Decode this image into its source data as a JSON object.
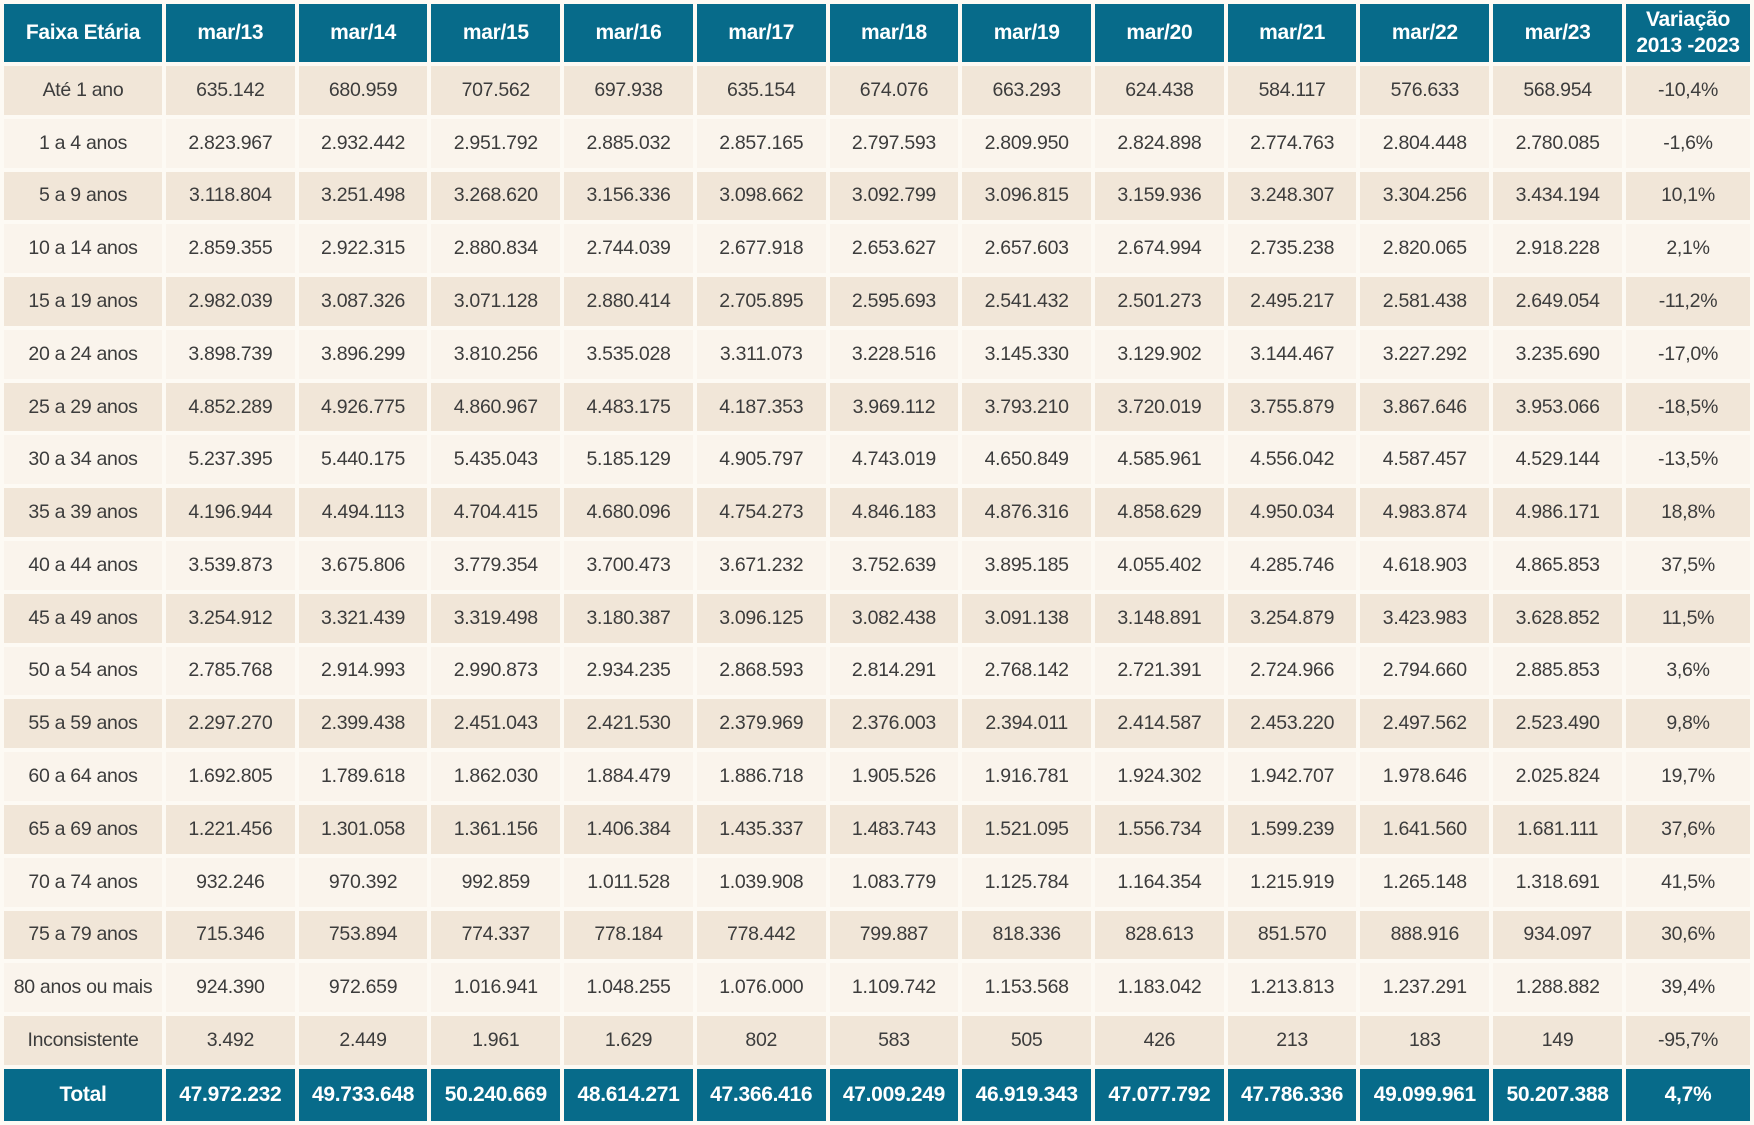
{
  "colors": {
    "header_bg": "#076b8a",
    "header_text": "#ffffff",
    "row_odd": "#f1e6d8",
    "row_even": "#faf4ec",
    "cell_text": "#3c3c3c",
    "page_bg": "#fdfaf4"
  },
  "chart_data": {
    "type": "table",
    "title": "",
    "columns": [
      "Faixa Etária",
      "mar/13",
      "mar/14",
      "mar/15",
      "mar/16",
      "mar/17",
      "mar/18",
      "mar/19",
      "mar/20",
      "mar/21",
      "mar/22",
      "mar/23"
    ],
    "variation_header": {
      "line1": "Variação",
      "line2": "2013 -2023"
    },
    "rows": [
      {
        "label": "Até 1 ano",
        "values": [
          "635.142",
          "680.959",
          "707.562",
          "697.938",
          "635.154",
          "674.076",
          "663.293",
          "624.438",
          "584.117",
          "576.633",
          "568.954"
        ],
        "variation": "-10,4%"
      },
      {
        "label": "1 a 4 anos",
        "values": [
          "2.823.967",
          "2.932.442",
          "2.951.792",
          "2.885.032",
          "2.857.165",
          "2.797.593",
          "2.809.950",
          "2.824.898",
          "2.774.763",
          "2.804.448",
          "2.780.085"
        ],
        "variation": "-1,6%"
      },
      {
        "label": "5 a 9 anos",
        "values": [
          "3.118.804",
          "3.251.498",
          "3.268.620",
          "3.156.336",
          "3.098.662",
          "3.092.799",
          "3.096.815",
          "3.159.936",
          "3.248.307",
          "3.304.256",
          "3.434.194"
        ],
        "variation": "10,1%"
      },
      {
        "label": "10 a 14 anos",
        "values": [
          "2.859.355",
          "2.922.315",
          "2.880.834",
          "2.744.039",
          "2.677.918",
          "2.653.627",
          "2.657.603",
          "2.674.994",
          "2.735.238",
          "2.820.065",
          "2.918.228"
        ],
        "variation": "2,1%"
      },
      {
        "label": "15 a 19 anos",
        "values": [
          "2.982.039",
          "3.087.326",
          "3.071.128",
          "2.880.414",
          "2.705.895",
          "2.595.693",
          "2.541.432",
          "2.501.273",
          "2.495.217",
          "2.581.438",
          "2.649.054"
        ],
        "variation": "-11,2%"
      },
      {
        "label": "20 a 24 anos",
        "values": [
          "3.898.739",
          "3.896.299",
          "3.810.256",
          "3.535.028",
          "3.311.073",
          "3.228.516",
          "3.145.330",
          "3.129.902",
          "3.144.467",
          "3.227.292",
          "3.235.690"
        ],
        "variation": "-17,0%"
      },
      {
        "label": "25 a 29 anos",
        "values": [
          "4.852.289",
          "4.926.775",
          "4.860.967",
          "4.483.175",
          "4.187.353",
          "3.969.112",
          "3.793.210",
          "3.720.019",
          "3.755.879",
          "3.867.646",
          "3.953.066"
        ],
        "variation": "-18,5%"
      },
      {
        "label": "30 a 34 anos",
        "values": [
          "5.237.395",
          "5.440.175",
          "5.435.043",
          "5.185.129",
          "4.905.797",
          "4.743.019",
          "4.650.849",
          "4.585.961",
          "4.556.042",
          "4.587.457",
          "4.529.144"
        ],
        "variation": "-13,5%"
      },
      {
        "label": "35 a 39 anos",
        "values": [
          "4.196.944",
          "4.494.113",
          "4.704.415",
          "4.680.096",
          "4.754.273",
          "4.846.183",
          "4.876.316",
          "4.858.629",
          "4.950.034",
          "4.983.874",
          "4.986.171"
        ],
        "variation": "18,8%"
      },
      {
        "label": "40 a 44 anos",
        "values": [
          "3.539.873",
          "3.675.806",
          "3.779.354",
          "3.700.473",
          "3.671.232",
          "3.752.639",
          "3.895.185",
          "4.055.402",
          "4.285.746",
          "4.618.903",
          "4.865.853"
        ],
        "variation": "37,5%"
      },
      {
        "label": "45 a 49 anos",
        "values": [
          "3.254.912",
          "3.321.439",
          "3.319.498",
          "3.180.387",
          "3.096.125",
          "3.082.438",
          "3.091.138",
          "3.148.891",
          "3.254.879",
          "3.423.983",
          "3.628.852"
        ],
        "variation": "11,5%"
      },
      {
        "label": "50 a 54 anos",
        "values": [
          "2.785.768",
          "2.914.993",
          "2.990.873",
          "2.934.235",
          "2.868.593",
          "2.814.291",
          "2.768.142",
          "2.721.391",
          "2.724.966",
          "2.794.660",
          "2.885.853"
        ],
        "variation": "3,6%"
      },
      {
        "label": "55 a 59 anos",
        "values": [
          "2.297.270",
          "2.399.438",
          "2.451.043",
          "2.421.530",
          "2.379.969",
          "2.376.003",
          "2.394.011",
          "2.414.587",
          "2.453.220",
          "2.497.562",
          "2.523.490"
        ],
        "variation": "9,8%"
      },
      {
        "label": "60 a 64 anos",
        "values": [
          "1.692.805",
          "1.789.618",
          "1.862.030",
          "1.884.479",
          "1.886.718",
          "1.905.526",
          "1.916.781",
          "1.924.302",
          "1.942.707",
          "1.978.646",
          "2.025.824"
        ],
        "variation": "19,7%"
      },
      {
        "label": "65 a 69 anos",
        "values": [
          "1.221.456",
          "1.301.058",
          "1.361.156",
          "1.406.384",
          "1.435.337",
          "1.483.743",
          "1.521.095",
          "1.556.734",
          "1.599.239",
          "1.641.560",
          "1.681.111"
        ],
        "variation": "37,6%"
      },
      {
        "label": "70 a 74 anos",
        "values": [
          "932.246",
          "970.392",
          "992.859",
          "1.011.528",
          "1.039.908",
          "1.083.779",
          "1.125.784",
          "1.164.354",
          "1.215.919",
          "1.265.148",
          "1.318.691"
        ],
        "variation": "41,5%"
      },
      {
        "label": "75 a 79 anos",
        "values": [
          "715.346",
          "753.894",
          "774.337",
          "778.184",
          "778.442",
          "799.887",
          "818.336",
          "828.613",
          "851.570",
          "888.916",
          "934.097"
        ],
        "variation": "30,6%"
      },
      {
        "label": "80 anos ou mais",
        "values": [
          "924.390",
          "972.659",
          "1.016.941",
          "1.048.255",
          "1.076.000",
          "1.109.742",
          "1.153.568",
          "1.183.042",
          "1.213.813",
          "1.237.291",
          "1.288.882"
        ],
        "variation": "39,4%"
      },
      {
        "label": "Inconsistente",
        "values": [
          "3.492",
          "2.449",
          "1.961",
          "1.629",
          "802",
          "583",
          "505",
          "426",
          "213",
          "183",
          "149"
        ],
        "variation": "-95,7%"
      }
    ],
    "total": {
      "label": "Total",
      "values": [
        "47.972.232",
        "49.733.648",
        "50.240.669",
        "48.614.271",
        "47.366.416",
        "47.009.249",
        "46.919.343",
        "47.077.792",
        "47.786.336",
        "49.099.961",
        "50.207.388"
      ],
      "variation": "4,7%"
    }
  }
}
